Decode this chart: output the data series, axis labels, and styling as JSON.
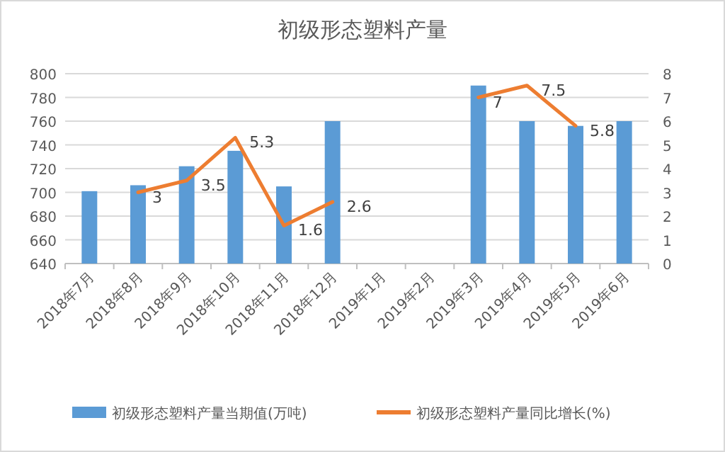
{
  "chart_data": {
    "type": "bar",
    "title": "初级形态塑料产量",
    "categories": [
      "2018年7月",
      "2018年8月",
      "2018年9月",
      "2018年10月",
      "2018年11月",
      "2018年12月",
      "2019年1月",
      "2019年2月",
      "2019年3月",
      "2019年4月",
      "2019年5月",
      "2019年6月"
    ],
    "series": [
      {
        "name": "初级形态塑料产量当期值(万吨)",
        "color": "#5b9bd5",
        "values": [
          701,
          706,
          722,
          735,
          705,
          760,
          null,
          null,
          790,
          760,
          756,
          760
        ]
      },
      {
        "name": "初级形态塑料产量同比增长(%)",
        "type": "line",
        "axis": "y2",
        "color": "#ed7d31",
        "values": [
          null,
          3,
          3.5,
          5.3,
          1.6,
          2.6,
          null,
          null,
          7,
          7.5,
          5.8,
          null
        ],
        "value_labels": [
          null,
          "3",
          "3.5",
          "5.3",
          "1.6",
          "2.6",
          null,
          null,
          "7",
          "7.5",
          "5.8",
          null
        ]
      }
    ],
    "ylim": [
      640,
      800
    ],
    "yticks": [
      640,
      660,
      680,
      700,
      720,
      740,
      760,
      780,
      800
    ],
    "y2lim": [
      0,
      8
    ],
    "y2ticks": [
      0,
      1,
      2,
      3,
      4,
      5,
      6,
      7,
      8
    ],
    "grid": "y",
    "legend": "bottom"
  }
}
